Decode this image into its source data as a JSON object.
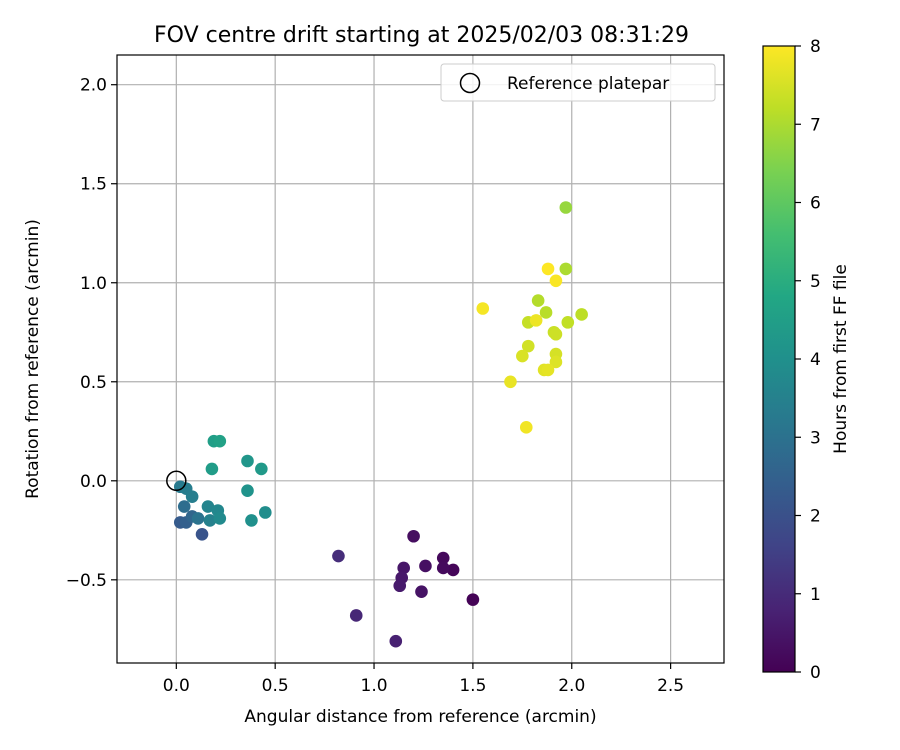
{
  "chart_data": {
    "type": "scatter",
    "title": "FOV centre drift starting at 2025/02/03 08:31:29",
    "xlabel": "Angular distance from reference (arcmin)",
    "ylabel": "Rotation from reference (arcmin)",
    "xlim": [
      -0.3,
      2.77
    ],
    "ylim": [
      -0.92,
      2.15
    ],
    "xticks": [
      0.0,
      0.5,
      1.0,
      1.5,
      2.0,
      2.5
    ],
    "xtick_labels": [
      "0.0",
      "0.5",
      "1.0",
      "1.5",
      "2.0",
      "2.5"
    ],
    "yticks": [
      -0.5,
      0.0,
      0.5,
      1.0,
      1.5,
      2.0
    ],
    "ytick_labels": [
      "−0.5",
      "0.0",
      "0.5",
      "1.0",
      "1.5",
      "2.0"
    ],
    "grid": true,
    "legend": {
      "position": "top-right",
      "entries": [
        "Reference platepar"
      ]
    },
    "reference_point": {
      "x": 0.0,
      "y": 0.0
    },
    "colorbar": {
      "label": "Hours from first FF file",
      "colormap": "viridis",
      "range": [
        0,
        8
      ],
      "ticks": [
        0,
        1,
        2,
        3,
        4,
        5,
        6,
        7,
        8
      ],
      "tick_labels": [
        "0",
        "1",
        "2",
        "3",
        "4",
        "5",
        "6",
        "7",
        "8"
      ]
    },
    "points": [
      {
        "x": 1.5,
        "y": -0.6,
        "hours": 0.05
      },
      {
        "x": 1.4,
        "y": -0.45,
        "hours": 0.12
      },
      {
        "x": 1.35,
        "y": -0.39,
        "hours": 0.18
      },
      {
        "x": 1.35,
        "y": -0.44,
        "hours": 0.22
      },
      {
        "x": 1.2,
        "y": -0.28,
        "hours": 0.3
      },
      {
        "x": 1.26,
        "y": -0.43,
        "hours": 0.35
      },
      {
        "x": 1.24,
        "y": -0.56,
        "hours": 0.42
      },
      {
        "x": 1.15,
        "y": -0.44,
        "hours": 0.5
      },
      {
        "x": 1.14,
        "y": -0.49,
        "hours": 0.55
      },
      {
        "x": 1.13,
        "y": -0.53,
        "hours": 0.6
      },
      {
        "x": 1.11,
        "y": -0.81,
        "hours": 0.75
      },
      {
        "x": 0.91,
        "y": -0.68,
        "hours": 0.9
      },
      {
        "x": 0.82,
        "y": -0.38,
        "hours": 1.05
      },
      {
        "x": 0.13,
        "y": -0.27,
        "hours": 2.1
      },
      {
        "x": 0.02,
        "y": -0.21,
        "hours": 2.3
      },
      {
        "x": 0.05,
        "y": -0.21,
        "hours": 2.45
      },
      {
        "x": 0.08,
        "y": -0.18,
        "hours": 2.65
      },
      {
        "x": 0.04,
        "y": -0.13,
        "hours": 2.85
      },
      {
        "x": 0.11,
        "y": -0.19,
        "hours": 3.05
      },
      {
        "x": 0.02,
        "y": -0.03,
        "hours": 3.25
      },
      {
        "x": 0.05,
        "y": -0.04,
        "hours": 3.35
      },
      {
        "x": 0.08,
        "y": -0.08,
        "hours": 3.4
      },
      {
        "x": 0.17,
        "y": -0.2,
        "hours": 3.5
      },
      {
        "x": 0.16,
        "y": -0.13,
        "hours": 3.6
      },
      {
        "x": 0.21,
        "y": -0.15,
        "hours": 3.7
      },
      {
        "x": 0.22,
        "y": -0.19,
        "hours": 3.8
      },
      {
        "x": 0.45,
        "y": -0.16,
        "hours": 3.9
      },
      {
        "x": 0.38,
        "y": -0.2,
        "hours": 4.0
      },
      {
        "x": 0.36,
        "y": -0.05,
        "hours": 4.1
      },
      {
        "x": 0.36,
        "y": 0.1,
        "hours": 4.2
      },
      {
        "x": 0.43,
        "y": 0.06,
        "hours": 4.3
      },
      {
        "x": 0.18,
        "y": 0.06,
        "hours": 4.4
      },
      {
        "x": 0.19,
        "y": 0.2,
        "hours": 4.5
      },
      {
        "x": 0.22,
        "y": 0.2,
        "hours": 4.6
      },
      {
        "x": 1.97,
        "y": 1.38,
        "hours": 6.75
      },
      {
        "x": 1.97,
        "y": 1.07,
        "hours": 7.0
      },
      {
        "x": 1.83,
        "y": 0.91,
        "hours": 7.1
      },
      {
        "x": 1.87,
        "y": 0.85,
        "hours": 7.15
      },
      {
        "x": 2.05,
        "y": 0.84,
        "hours": 7.2
      },
      {
        "x": 1.98,
        "y": 0.8,
        "hours": 7.25
      },
      {
        "x": 1.78,
        "y": 0.8,
        "hours": 7.3
      },
      {
        "x": 1.91,
        "y": 0.75,
        "hours": 7.35
      },
      {
        "x": 1.92,
        "y": 0.74,
        "hours": 7.4
      },
      {
        "x": 1.78,
        "y": 0.68,
        "hours": 7.45
      },
      {
        "x": 1.92,
        "y": 0.64,
        "hours": 7.5
      },
      {
        "x": 1.75,
        "y": 0.63,
        "hours": 7.55
      },
      {
        "x": 1.92,
        "y": 0.6,
        "hours": 7.6
      },
      {
        "x": 1.86,
        "y": 0.56,
        "hours": 7.65
      },
      {
        "x": 1.88,
        "y": 0.56,
        "hours": 7.7
      },
      {
        "x": 1.69,
        "y": 0.5,
        "hours": 7.75
      },
      {
        "x": 1.82,
        "y": 0.81,
        "hours": 7.8
      },
      {
        "x": 1.77,
        "y": 0.27,
        "hours": 7.85
      },
      {
        "x": 1.55,
        "y": 0.87,
        "hours": 7.9
      },
      {
        "x": 1.92,
        "y": 1.01,
        "hours": 7.95
      },
      {
        "x": 1.88,
        "y": 1.07,
        "hours": 8.0
      }
    ]
  }
}
